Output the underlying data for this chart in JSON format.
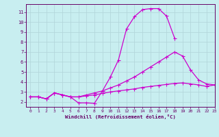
{
  "title": "",
  "xlabel": "Windchill (Refroidissement éolien,°C)",
  "ylabel": "",
  "xlim": [
    -0.5,
    23
  ],
  "ylim": [
    1.5,
    11.8
  ],
  "xticks": [
    0,
    1,
    2,
    3,
    4,
    5,
    6,
    7,
    8,
    9,
    10,
    11,
    12,
    13,
    14,
    15,
    16,
    17,
    18,
    19,
    20,
    21,
    22,
    23
  ],
  "yticks": [
    2,
    3,
    4,
    5,
    6,
    7,
    8,
    9,
    10,
    11
  ],
  "background_color": "#c8eef0",
  "grid_color": "#b0d4d8",
  "line_color": "#cc00cc",
  "line1_x": [
    0,
    1,
    2,
    3,
    4,
    5,
    6,
    7,
    8,
    9,
    10,
    11,
    12,
    13,
    14,
    15,
    16,
    17,
    18
  ],
  "line1_y": [
    2.5,
    2.5,
    2.3,
    2.9,
    2.7,
    2.5,
    1.9,
    1.9,
    1.85,
    3.1,
    4.5,
    6.2,
    9.3,
    10.55,
    11.25,
    11.35,
    11.35,
    10.6,
    8.4
  ],
  "line2_x": [
    0,
    1,
    2,
    3,
    4,
    5,
    6,
    7,
    8,
    9,
    10,
    11,
    12,
    13,
    14,
    15,
    16,
    17,
    18,
    19,
    20,
    21,
    22,
    23
  ],
  "line2_y": [
    2.5,
    2.5,
    2.3,
    2.9,
    2.7,
    2.5,
    2.5,
    2.7,
    2.9,
    3.1,
    3.4,
    3.7,
    4.1,
    4.5,
    5.0,
    5.5,
    6.0,
    6.5,
    7.0,
    6.6,
    5.2,
    4.2,
    3.8,
    3.7
  ],
  "line3_x": [
    0,
    1,
    2,
    3,
    4,
    5,
    6,
    7,
    8,
    9,
    10,
    11,
    12,
    13,
    14,
    15,
    16,
    17,
    18,
    19,
    20,
    21,
    22,
    23
  ],
  "line3_y": [
    2.5,
    2.5,
    2.3,
    2.9,
    2.7,
    2.5,
    2.5,
    2.6,
    2.7,
    2.85,
    3.0,
    3.1,
    3.2,
    3.3,
    3.45,
    3.55,
    3.65,
    3.75,
    3.85,
    3.9,
    3.8,
    3.7,
    3.55,
    3.7
  ]
}
